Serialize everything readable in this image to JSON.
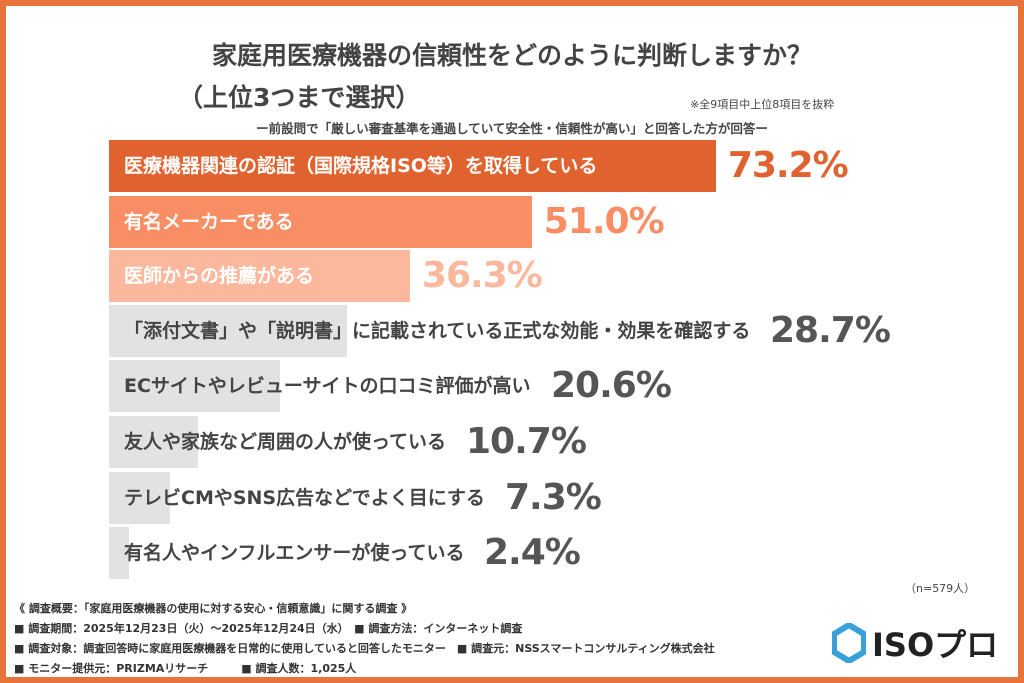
{
  "header": {
    "title": "家庭用医療機器の信頼性をどのように判断しますか？",
    "subtitle": "（上位3つまで選択）",
    "note": "※全9項目中上位8項目を抜粋",
    "premise": "ー前設問で「厳しい審査基準を通過していて安全性・信頼性が高い」と回答した方が回答ー"
  },
  "chart_data": {
    "type": "bar",
    "orientation": "horizontal",
    "xlim": [
      0,
      100
    ],
    "categories": [
      "医療機器関連の認証（国際規格ISO等）を取得している",
      "有名メーカーである",
      "医師からの推薦がある",
      "「添付文書」や「説明書」に記載されている正式な効能・効果を確認する",
      "ECサイトやレビューサイトの口コミ評価が高い",
      "友人や家族など周囲の人が使っている",
      "テレビCMやSNS広告などでよく目にする",
      "有名人やインフルエンサーが使っている"
    ],
    "values": [
      73.2,
      51.0,
      36.3,
      28.7,
      20.6,
      10.7,
      7.3,
      2.4
    ],
    "value_labels": [
      "73.2%",
      "51.0%",
      "36.3%",
      "28.7%",
      "20.6%",
      "10.7%",
      "7.3%",
      "2.4%"
    ],
    "colors": [
      "#e0632f",
      "#f98d63",
      "#fbb89c",
      "#e2e2e2",
      "#e2e2e2",
      "#e2e2e2",
      "#e2e2e2",
      "#e2e2e2"
    ],
    "value_colors": [
      "#e0632f",
      "#f98d63",
      "#fbb89c",
      "#555555",
      "#555555",
      "#555555",
      "#555555",
      "#555555"
    ]
  },
  "sample": "（n=579人）",
  "footer": {
    "lines": [
      "《 調査概要：「家庭用医療機器の使用に対する安心・信頼意識」に関する調査 》",
      "■ 調査期間：2025年12月23日（火）～2025年12月24日（水）　■ 調査方法：インターネット調査",
      "■ 調査対象：調査回答時に家庭用医療機器を日常的に使用していると回答したモニター　■ 調査元：NSSスマートコンサルティング株式会社",
      "■ モニター提供元：PRIZMAリサーチ　　　■ 調査人数：1,025人"
    ]
  },
  "logo": {
    "text": "ISOプロ",
    "accent": "#3aa0d8"
  }
}
